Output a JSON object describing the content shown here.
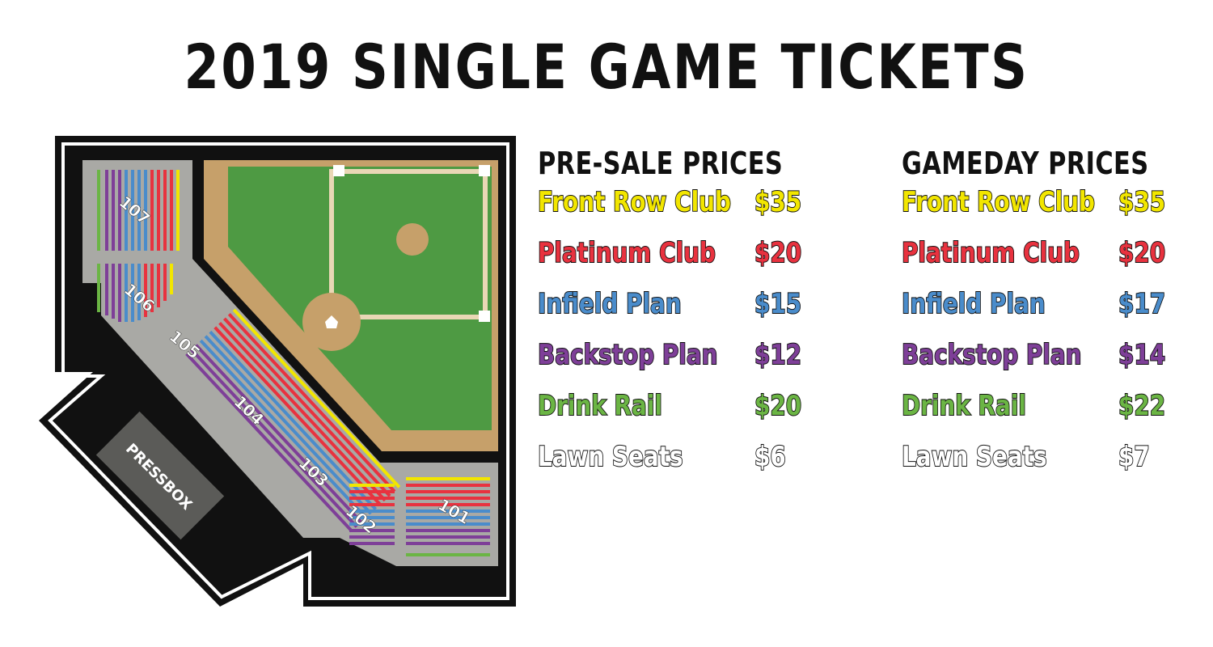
{
  "title": "2019 SINGLE GAME TICKETS",
  "colors": {
    "front_row": "#f2e600",
    "platinum": "#e8323f",
    "infield": "#4a8ccb",
    "backstop": "#7e3f98",
    "drink_rail": "#6bb544",
    "lawn": "#ffffff",
    "field_grass": "#4e9a43",
    "dirt": "#c6a06a",
    "concourse": "#a9a9a5",
    "pressbox": "#5b5b58"
  },
  "map": {
    "sections": [
      "107",
      "106",
      "105",
      "104",
      "103",
      "102",
      "101"
    ],
    "pressbox_label": "PRESSBOX"
  },
  "presale": {
    "heading": "PRE-SALE PRICES",
    "rows": [
      {
        "name": "Front Row Club",
        "price": "$35"
      },
      {
        "name": "Platinum Club",
        "price": "$20"
      },
      {
        "name": "Infield Plan",
        "price": "$15"
      },
      {
        "name": "Backstop Plan",
        "price": "$12"
      },
      {
        "name": "Drink Rail",
        "price": "$20"
      },
      {
        "name": "Lawn Seats",
        "price": "$6"
      }
    ]
  },
  "gameday": {
    "heading": "GAMEDAY PRICES",
    "rows": [
      {
        "name": "Front Row Club",
        "price": "$35"
      },
      {
        "name": "Platinum Club",
        "price": "$20"
      },
      {
        "name": "Infield Plan",
        "price": "$17"
      },
      {
        "name": "Backstop Plan",
        "price": "$14"
      },
      {
        "name": "Drink Rail",
        "price": "$22"
      },
      {
        "name": "Lawn Seats",
        "price": "$7"
      }
    ]
  }
}
